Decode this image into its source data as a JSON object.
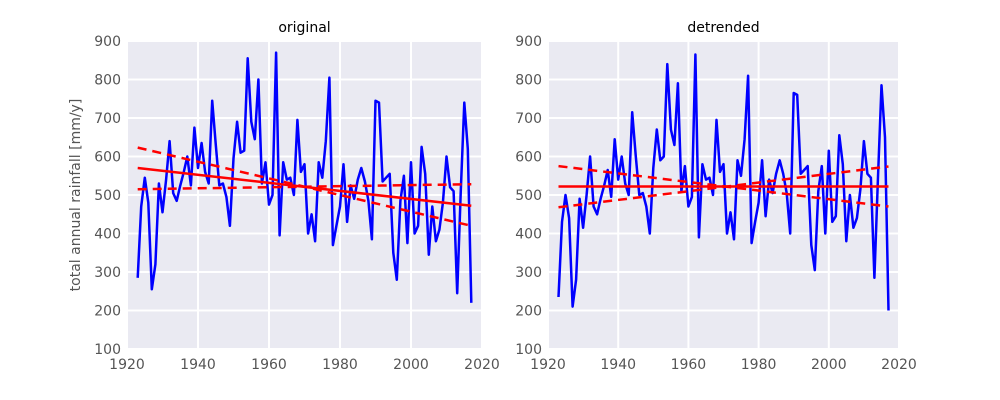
{
  "chart_data": [
    {
      "type": "line",
      "title": "original",
      "xlabel": "",
      "ylabel": "total annual rainfall [mm/y]",
      "xlim": [
        1920,
        2020
      ],
      "ylim": [
        100,
        900
      ],
      "xticks": [
        1920,
        1940,
        1960,
        1980,
        2000,
        2020
      ],
      "yticks": [
        100,
        200,
        300,
        400,
        500,
        600,
        700,
        800,
        900
      ],
      "grid": true,
      "series": [
        {
          "color": "#0000ff",
          "style": "solid",
          "x": [
            1923,
            1924,
            1925,
            1926,
            1927,
            1928,
            1929,
            1930,
            1931,
            1932,
            1933,
            1934,
            1935,
            1936,
            1937,
            1938,
            1939,
            1940,
            1941,
            1942,
            1943,
            1944,
            1945,
            1946,
            1947,
            1948,
            1949,
            1950,
            1951,
            1952,
            1953,
            1954,
            1955,
            1956,
            1957,
            1958,
            1959,
            1960,
            1961,
            1962,
            1963,
            1964,
            1965,
            1966,
            1967,
            1968,
            1969,
            1970,
            1971,
            1972,
            1973,
            1974,
            1975,
            1976,
            1977,
            1978,
            1979,
            1980,
            1981,
            1982,
            1983,
            1984,
            1985,
            1986,
            1987,
            1988,
            1989,
            1990,
            1991,
            1992,
            1993,
            1994,
            1995,
            1996,
            1997,
            1998,
            1999,
            2000,
            2001,
            2002,
            2003,
            2004,
            2005,
            2006,
            2007,
            2008,
            2009,
            2010,
            2011,
            2012,
            2013,
            2014,
            2015,
            2016,
            2017
          ],
          "y": [
            285,
            470,
            545,
            480,
            255,
            320,
            530,
            455,
            540,
            640,
            505,
            485,
            525,
            560,
            600,
            525,
            675,
            570,
            635,
            560,
            530,
            745,
            630,
            525,
            530,
            495,
            420,
            595,
            690,
            610,
            615,
            855,
            690,
            645,
            800,
            530,
            585,
            475,
            500,
            870,
            395,
            585,
            540,
            545,
            500,
            695,
            560,
            580,
            400,
            450,
            380,
            585,
            545,
            640,
            805,
            370,
            420,
            470,
            580,
            430,
            525,
            490,
            540,
            570,
            535,
            485,
            385,
            745,
            740,
            535,
            545,
            555,
            350,
            280,
            485,
            550,
            375,
            585,
            400,
            420,
            625,
            555,
            345,
            470,
            380,
            410,
            480,
            600,
            520,
            510,
            245,
            505,
            740,
            620,
            220
          ]
        },
        {
          "color": "#ff0000",
          "style": "solid",
          "x": [
            1923,
            2017
          ],
          "y": [
            570,
            472
          ]
        },
        {
          "color": "#ff0000",
          "style": "dashed",
          "x": [
            1923,
            2017
          ],
          "y": [
            623,
            420
          ]
        },
        {
          "color": "#ff0000",
          "style": "dashed",
          "x": [
            1923,
            2017
          ],
          "y": [
            515,
            528
          ]
        }
      ]
    },
    {
      "type": "line",
      "title": "detrended",
      "xlabel": "",
      "ylabel": "",
      "xlim": [
        1920,
        2020
      ],
      "ylim": [
        100,
        900
      ],
      "xticks": [
        1920,
        1940,
        1960,
        1980,
        2000,
        2020
      ],
      "yticks": [
        100,
        200,
        300,
        400,
        500,
        600,
        700,
        800,
        900
      ],
      "grid": true,
      "series": [
        {
          "color": "#0000ff",
          "style": "solid",
          "x": [
            1923,
            1924,
            1925,
            1926,
            1927,
            1928,
            1929,
            1930,
            1931,
            1932,
            1933,
            1934,
            1935,
            1936,
            1937,
            1938,
            1939,
            1940,
            1941,
            1942,
            1943,
            1944,
            1945,
            1946,
            1947,
            1948,
            1949,
            1950,
            1951,
            1952,
            1953,
            1954,
            1955,
            1956,
            1957,
            1958,
            1959,
            1960,
            1961,
            1962,
            1963,
            1964,
            1965,
            1966,
            1967,
            1968,
            1969,
            1970,
            1971,
            1972,
            1973,
            1974,
            1975,
            1976,
            1977,
            1978,
            1979,
            1980,
            1981,
            1982,
            1983,
            1984,
            1985,
            1986,
            1987,
            1988,
            1989,
            1990,
            1991,
            1992,
            1993,
            1994,
            1995,
            1996,
            1997,
            1998,
            1999,
            2000,
            2001,
            2002,
            2003,
            2004,
            2005,
            2006,
            2007,
            2008,
            2009,
            2010,
            2011,
            2012,
            2013,
            2014,
            2015,
            2016,
            2017
          ],
          "y": [
            235,
            430,
            500,
            440,
            210,
            280,
            490,
            415,
            500,
            600,
            470,
            450,
            490,
            525,
            565,
            495,
            645,
            540,
            600,
            530,
            500,
            715,
            600,
            500,
            505,
            470,
            400,
            570,
            670,
            590,
            600,
            840,
            670,
            630,
            790,
            510,
            575,
            470,
            495,
            865,
            390,
            580,
            540,
            545,
            500,
            695,
            560,
            580,
            400,
            455,
            385,
            590,
            550,
            645,
            810,
            375,
            430,
            480,
            590,
            445,
            540,
            505,
            555,
            590,
            555,
            505,
            400,
            765,
            760,
            555,
            565,
            575,
            370,
            305,
            510,
            575,
            400,
            615,
            430,
            445,
            655,
            580,
            380,
            500,
            415,
            440,
            515,
            640,
            555,
            545,
            285,
            540,
            785,
            650,
            200
          ]
        },
        {
          "color": "#ff0000",
          "style": "solid",
          "x": [
            1923,
            2017
          ],
          "y": [
            522,
            522
          ]
        },
        {
          "color": "#ff0000",
          "style": "dashed",
          "x": [
            1923,
            2017
          ],
          "y": [
            575,
            470
          ]
        },
        {
          "color": "#ff0000",
          "style": "dashed",
          "x": [
            1923,
            2017
          ],
          "y": [
            468,
            574
          ]
        }
      ]
    }
  ]
}
